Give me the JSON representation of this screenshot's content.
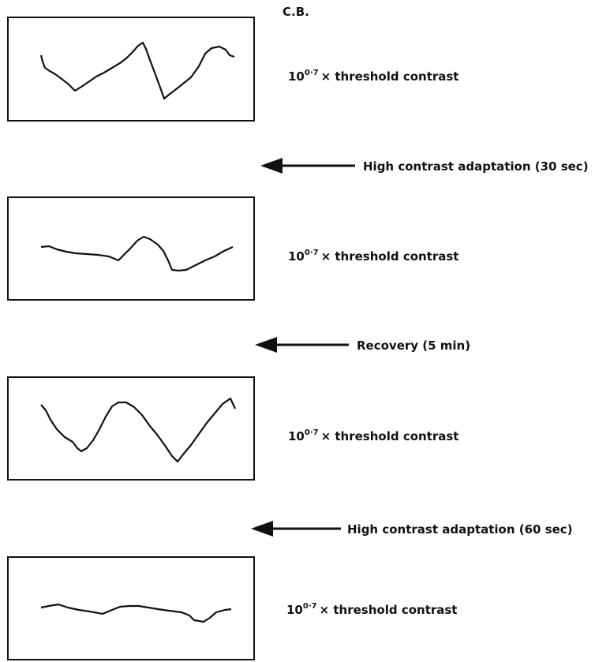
{
  "header": {
    "label": "C.B."
  },
  "panels": [
    {
      "label": {
        "base": "10",
        "exponent": "0·7",
        "text": "× threshold contrast"
      }
    },
    {
      "label": {
        "base": "10",
        "exponent": "0·7",
        "text": "× threshold contrast"
      }
    },
    {
      "label": {
        "base": "10",
        "exponent": "0·7",
        "text": "× threshold contrast"
      }
    },
    {
      "label": {
        "base": "10",
        "exponent": "0·7",
        "text": "× threshold contrast"
      }
    }
  ],
  "arrows": [
    {
      "label": "High contrast adaptation (30 sec)"
    },
    {
      "label": "Recovery (5 min)"
    },
    {
      "label": "High contrast adaptation (60 sec)"
    }
  ]
}
